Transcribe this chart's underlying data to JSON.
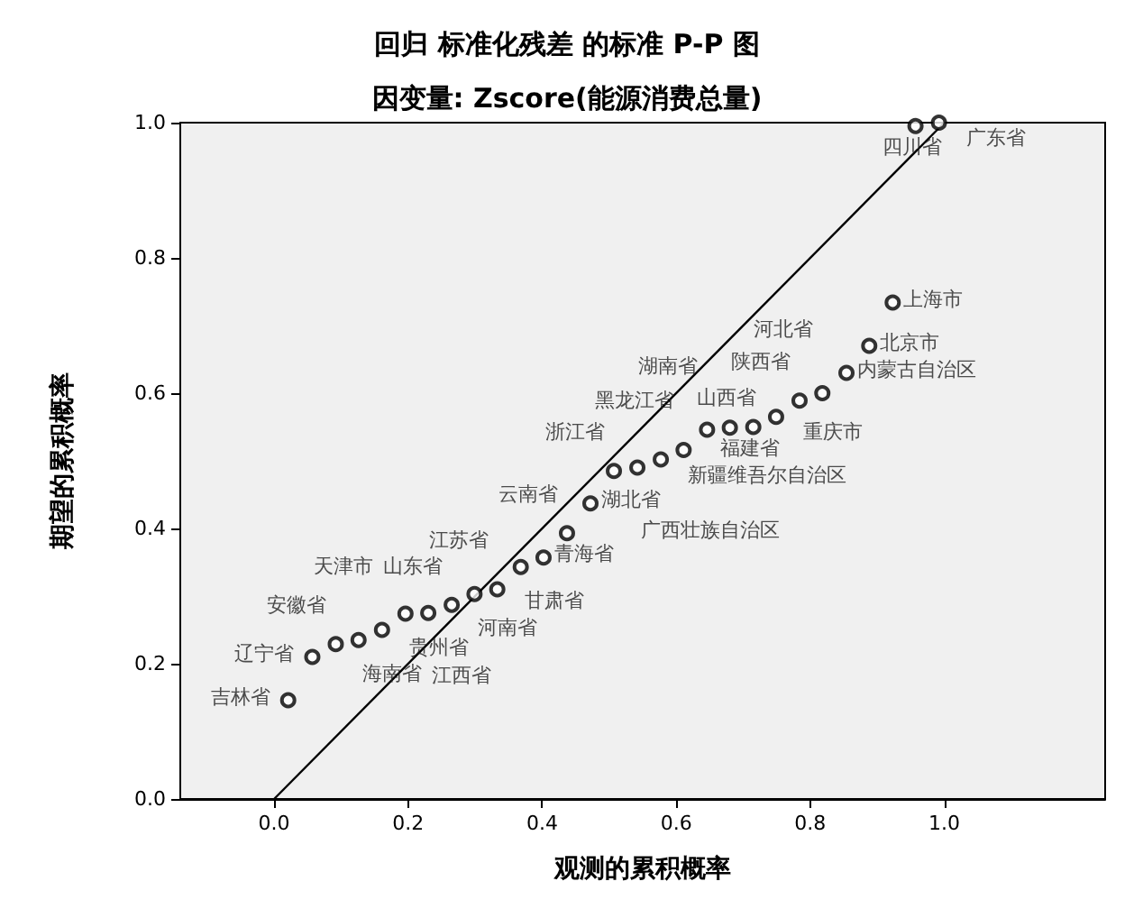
{
  "chart_data": {
    "type": "scatter",
    "title": "回归 标准化残差 的标准 P-P 图",
    "subtitle": "因变量: Zscore(能源消费总量)",
    "xlabel": "观测的累积概率",
    "ylabel": "期望的累积概率",
    "series": [
      {
        "type": "scatter",
        "color": "#000000",
        "marker": "circle",
        "x": [
          0.021,
          0.057,
          0.092,
          0.126,
          0.161,
          0.196,
          0.23,
          0.265,
          0.299,
          0.333,
          0.368,
          0.402,
          0.437,
          0.472,
          0.507,
          0.542,
          0.577,
          0.611,
          0.646,
          0.68,
          0.715,
          0.749,
          0.784,
          0.818,
          0.854,
          0.888,
          0.923,
          0.957,
          0.992
        ],
        "values": [
          0.146,
          0.21,
          0.229,
          0.235,
          0.25,
          0.274,
          0.275,
          0.287,
          0.303,
          0.31,
          0.343,
          0.357,
          0.393,
          0.437,
          0.485,
          0.49,
          0.502,
          0.516,
          0.546,
          0.549,
          0.55,
          0.565,
          0.589,
          0.6,
          0.63,
          0.67,
          0.734,
          0.995,
          1.0
        ],
        "value_labels": [
          "吉林省",
          "辽宁省",
          "安徽省",
          "海南省",
          "天津市",
          "贵州省",
          "江西省",
          "山东省",
          "河南省",
          "江苏省",
          "甘肃省",
          "青海省",
          "云南省",
          "湖北省",
          "浙江省",
          "广西壮族自治区",
          "新疆维吾尔自治区",
          "黑龙江省",
          "湖南省",
          "山西省",
          "福建省",
          "重庆市",
          "陕西省",
          "河北省",
          "内蒙古自治区",
          "北京市",
          "上海市",
          "四川省",
          "广东省"
        ]
      },
      {
        "type": "line",
        "color": "#000000",
        "marker": "none",
        "line_style": "solid",
        "x": [
          0,
          1
        ],
        "values": [
          0,
          1
        ]
      }
    ],
    "xlim": [
      -0.14,
      1.24
    ],
    "xticks": [
      {
        "value": 0,
        "label": "0.0"
      },
      {
        "value": 0.2,
        "label": "0.2"
      },
      {
        "value": 0.4,
        "label": "0.4"
      },
      {
        "value": 0.6,
        "label": "0.6"
      },
      {
        "value": 0.8,
        "label": "0.8"
      },
      {
        "value": 1,
        "label": "1.0"
      }
    ],
    "ylim": [
      0,
      1
    ],
    "yticks": [
      {
        "value": 0,
        "label": "0.0"
      },
      {
        "value": 0.2,
        "label": "0.2"
      },
      {
        "value": 0.4,
        "label": "0.4"
      },
      {
        "value": 0.6,
        "label": "0.6"
      },
      {
        "value": 0.8,
        "label": "0.8"
      },
      {
        "value": 1,
        "label": "1.0"
      }
    ],
    "grid": false,
    "legend": false
  }
}
